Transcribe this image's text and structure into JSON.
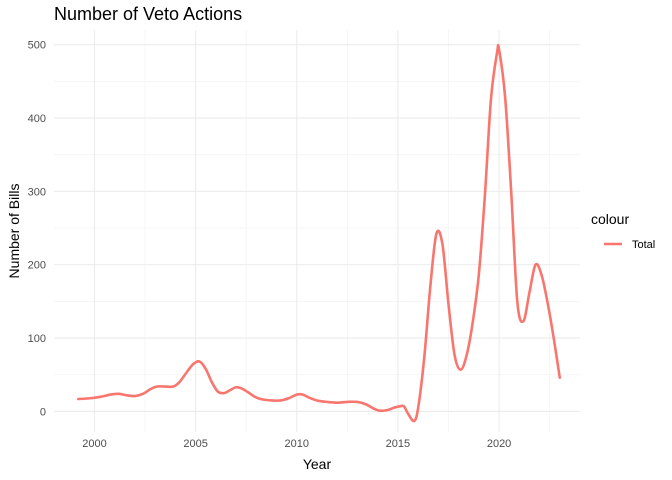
{
  "chart_data": {
    "type": "line",
    "title": "Number of Veto Actions",
    "xlabel": "Year",
    "ylabel": "Number of Bills",
    "xlim": [
      1998.0,
      2024.0
    ],
    "ylim": [
      -28,
      520
    ],
    "x_ticks": [
      2000,
      2005,
      2010,
      2015,
      2020
    ],
    "y_ticks": [
      0,
      100,
      200,
      300,
      400,
      500
    ],
    "grid": true,
    "legend": {
      "title": "colour",
      "position": "right"
    },
    "series": [
      {
        "name": "Total",
        "color": "#f8766d",
        "points": [
          [
            1999.2,
            17
          ],
          [
            1999.8,
            18
          ],
          [
            2000.3,
            20
          ],
          [
            2000.8,
            23
          ],
          [
            2001.2,
            24
          ],
          [
            2001.6,
            22
          ],
          [
            2002.0,
            21
          ],
          [
            2002.4,
            24
          ],
          [
            2002.8,
            31
          ],
          [
            2003.1,
            34
          ],
          [
            2003.5,
            34
          ],
          [
            2003.9,
            34
          ],
          [
            2004.2,
            40
          ],
          [
            2004.6,
            55
          ],
          [
            2004.9,
            65
          ],
          [
            2005.2,
            68
          ],
          [
            2005.5,
            58
          ],
          [
            2005.8,
            40
          ],
          [
            2006.1,
            27
          ],
          [
            2006.4,
            25
          ],
          [
            2006.7,
            29
          ],
          [
            2007.0,
            33
          ],
          [
            2007.3,
            31
          ],
          [
            2007.6,
            26
          ],
          [
            2008.0,
            19
          ],
          [
            2008.4,
            16
          ],
          [
            2008.8,
            15
          ],
          [
            2009.2,
            15
          ],
          [
            2009.6,
            18
          ],
          [
            2010.0,
            23
          ],
          [
            2010.3,
            23
          ],
          [
            2010.6,
            19
          ],
          [
            2011.0,
            15
          ],
          [
            2011.5,
            13
          ],
          [
            2012.0,
            12
          ],
          [
            2012.5,
            13
          ],
          [
            2013.0,
            13
          ],
          [
            2013.4,
            10
          ],
          [
            2013.8,
            4
          ],
          [
            2014.1,
            1
          ],
          [
            2014.5,
            2
          ],
          [
            2014.8,
            5
          ],
          [
            2015.1,
            7
          ],
          [
            2015.3,
            7
          ],
          [
            2015.5,
            -3
          ],
          [
            2015.8,
            -13
          ],
          [
            2016.0,
            5
          ],
          [
            2016.3,
            73
          ],
          [
            2016.6,
            170
          ],
          [
            2016.9,
            242
          ],
          [
            2017.2,
            228
          ],
          [
            2017.5,
            146
          ],
          [
            2017.8,
            77
          ],
          [
            2018.1,
            57
          ],
          [
            2018.4,
            77
          ],
          [
            2018.7,
            122
          ],
          [
            2019.0,
            187
          ],
          [
            2019.3,
            295
          ],
          [
            2019.6,
            426
          ],
          [
            2019.9,
            489
          ],
          [
            2020.0,
            493
          ],
          [
            2020.3,
            428
          ],
          [
            2020.6,
            299
          ],
          [
            2020.9,
            150
          ],
          [
            2021.2,
            123
          ],
          [
            2021.5,
            162
          ],
          [
            2021.8,
            200
          ],
          [
            2022.1,
            186
          ],
          [
            2022.4,
            148
          ],
          [
            2022.7,
            100
          ],
          [
            2023.0,
            46
          ]
        ]
      }
    ]
  }
}
